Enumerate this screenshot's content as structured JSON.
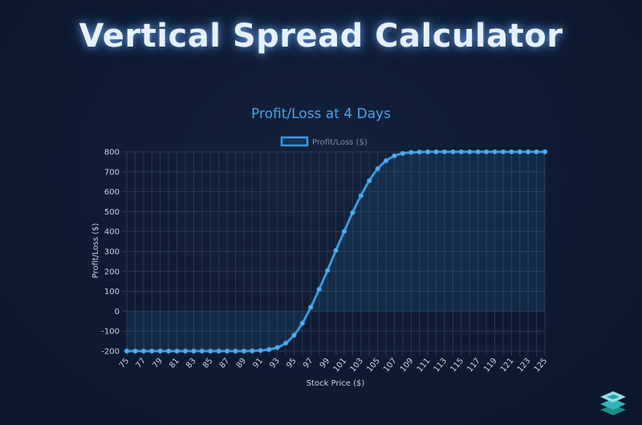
{
  "page": {
    "title": "Vertical Spread Calculator"
  },
  "colors": {
    "line": "#3b9ae1",
    "fill": "rgba(59,154,225,0.12)",
    "grid": "#2a3852",
    "text": "#c9d4e3",
    "chart_title": "#4aa3ec"
  },
  "logo": {
    "icon": "stacked-layers-logo-icon"
  },
  "chart_data": {
    "type": "line",
    "title": "Profit/Loss at 4 Days",
    "legend": [
      "Profit/Loss ($)"
    ],
    "legend_position": "top",
    "xlabel": "Stock Price ($)",
    "ylabel": "Profit/Loss ($)",
    "ylim": [
      -200,
      800
    ],
    "yticks": [
      -200,
      -100,
      0,
      100,
      200,
      300,
      400,
      500,
      600,
      700,
      800
    ],
    "xticks": [
      75,
      77,
      79,
      81,
      83,
      85,
      87,
      89,
      91,
      93,
      95,
      97,
      99,
      101,
      103,
      105,
      107,
      109,
      111,
      113,
      115,
      117,
      119,
      121,
      123,
      125
    ],
    "grid": true,
    "series": [
      {
        "name": "Profit/Loss ($)",
        "x": [
          75,
          76,
          77,
          78,
          79,
          80,
          81,
          82,
          83,
          84,
          85,
          86,
          87,
          88,
          89,
          90,
          91,
          92,
          93,
          94,
          95,
          96,
          97,
          98,
          99,
          100,
          101,
          102,
          103,
          104,
          105,
          106,
          107,
          108,
          109,
          110,
          111,
          112,
          113,
          114,
          115,
          116,
          117,
          118,
          119,
          120,
          121,
          122,
          123,
          124,
          125
        ],
        "values": [
          -200,
          -200,
          -200,
          -200,
          -200,
          -200,
          -200,
          -200,
          -200,
          -200,
          -200,
          -200,
          -200,
          -200,
          -200,
          -199,
          -197,
          -192,
          -182,
          -160,
          -120,
          -60,
          20,
          110,
          205,
          305,
          400,
          495,
          580,
          655,
          715,
          755,
          780,
          792,
          797,
          799,
          800,
          800,
          800,
          800,
          800,
          800,
          800,
          800,
          800,
          800,
          800,
          800,
          800,
          800,
          800
        ]
      }
    ]
  }
}
